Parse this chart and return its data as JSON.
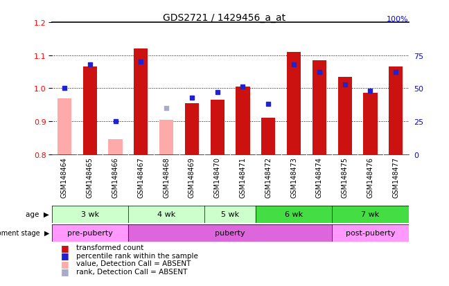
{
  "title": "GDS2721 / 1429456_a_at",
  "samples": [
    "GSM148464",
    "GSM148465",
    "GSM148466",
    "GSM148467",
    "GSM148468",
    "GSM148469",
    "GSM148470",
    "GSM148471",
    "GSM148472",
    "GSM148473",
    "GSM148474",
    "GSM148475",
    "GSM148476",
    "GSM148477"
  ],
  "transformed_count": [
    0.97,
    1.065,
    0.845,
    1.12,
    0.905,
    0.955,
    0.965,
    1.005,
    0.91,
    1.11,
    1.085,
    1.035,
    0.985,
    1.065
  ],
  "absent_value": [
    true,
    false,
    true,
    false,
    true,
    false,
    false,
    false,
    false,
    false,
    false,
    false,
    false,
    false
  ],
  "percentile_rank": [
    50,
    68,
    25,
    70,
    35,
    43,
    47,
    51,
    38,
    68,
    62,
    53,
    48,
    62
  ],
  "absent_rank": [
    false,
    false,
    false,
    false,
    true,
    false,
    false,
    false,
    false,
    false,
    false,
    false,
    false,
    false
  ],
  "ylim": [
    0.8,
    1.2
  ],
  "yticks_left": [
    0.8,
    0.9,
    1.0,
    1.1,
    1.2
  ],
  "yticks_right": [
    0,
    25,
    50,
    75
  ],
  "age_groups": [
    {
      "label": "3 wk",
      "start": 0,
      "end": 3,
      "color": "#ccffcc"
    },
    {
      "label": "4 wk",
      "start": 3,
      "end": 6,
      "color": "#ccffcc"
    },
    {
      "label": "5 wk",
      "start": 6,
      "end": 8,
      "color": "#ccffcc"
    },
    {
      "label": "6 wk",
      "start": 8,
      "end": 11,
      "color": "#44dd44"
    },
    {
      "label": "7 wk",
      "start": 11,
      "end": 14,
      "color": "#44dd44"
    }
  ],
  "dev_groups": [
    {
      "label": "pre-puberty",
      "start": 0,
      "end": 3,
      "color": "#ff99ff"
    },
    {
      "label": "puberty",
      "start": 3,
      "end": 11,
      "color": "#dd66dd"
    },
    {
      "label": "post-puberty",
      "start": 11,
      "end": 14,
      "color": "#ff99ff"
    }
  ],
  "bar_color_present": "#cc1111",
  "bar_color_absent": "#ffaaaa",
  "rank_color_present": "#2222cc",
  "rank_color_absent": "#aaaacc",
  "bar_width": 0.55,
  "rank_marker_size": 5,
  "label_fontsize": 8,
  "tick_label_fontsize": 7,
  "gray_bg": "#cccccc",
  "legend_items": [
    {
      "color": "#cc1111",
      "label": "transformed count"
    },
    {
      "color": "#2222cc",
      "label": "percentile rank within the sample"
    },
    {
      "color": "#ffaaaa",
      "label": "value, Detection Call = ABSENT"
    },
    {
      "color": "#aaaacc",
      "label": "rank, Detection Call = ABSENT"
    }
  ]
}
